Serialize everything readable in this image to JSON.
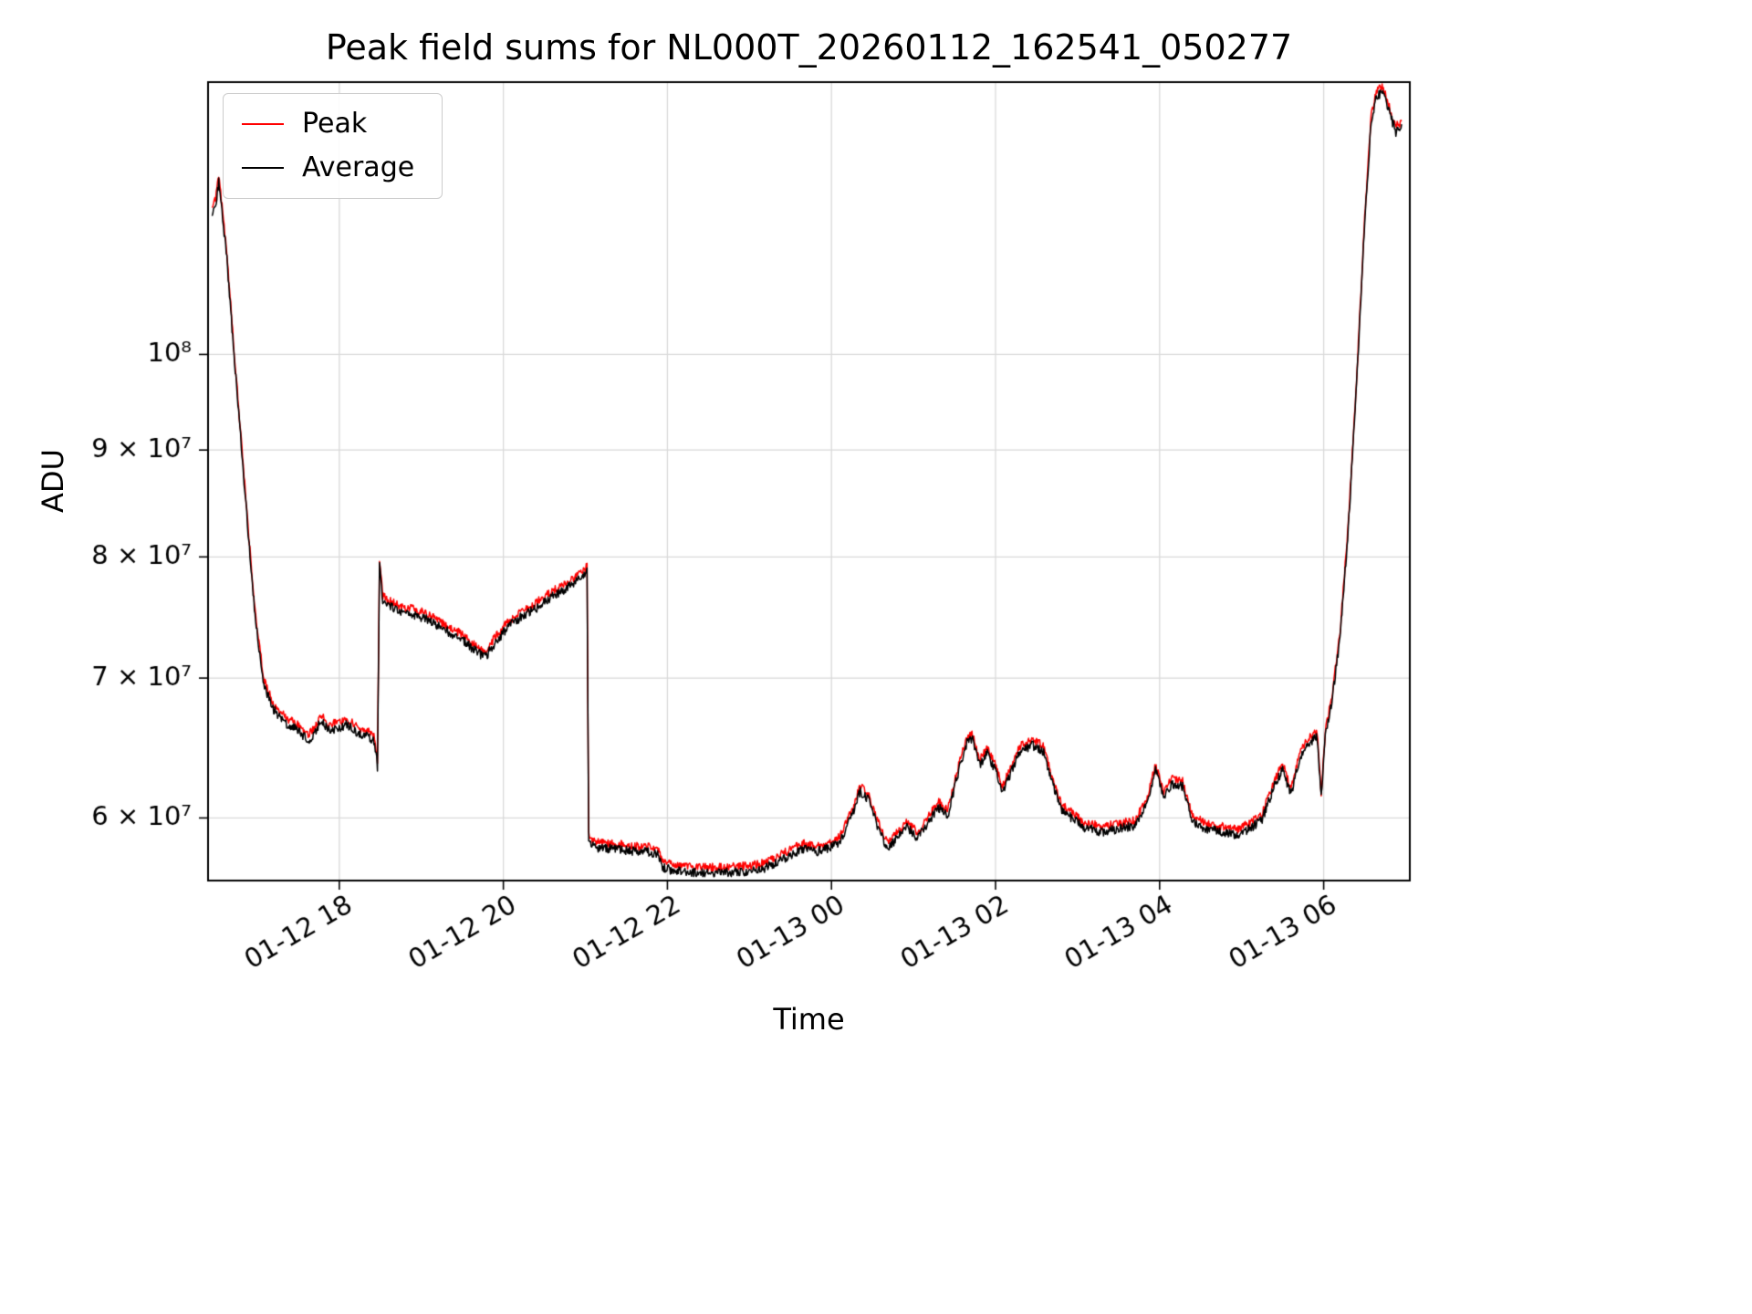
{
  "figure": {
    "background": "#ffffff"
  },
  "chart_data": {
    "type": "line",
    "title": "Peak field sums for NL000T_20260112_162541_050277",
    "xlabel": "Time",
    "ylabel": "ADU",
    "y_scale": "log",
    "grid": true,
    "legend_position": "upper left",
    "x_units": "hours since 01-12 00:00",
    "x_range": [
      16.4,
      31.05
    ],
    "y_range": [
      56000000,
      135000000
    ],
    "x_ticks": {
      "values": [
        18,
        20,
        22,
        24,
        26,
        28,
        30
      ],
      "labels": [
        "01-12 18",
        "01-12 20",
        "01-12 22",
        "01-13 00",
        "01-13 02",
        "01-13 04",
        "01-13 06"
      ]
    },
    "y_ticks": {
      "values": [
        60000000,
        70000000,
        80000000,
        90000000,
        100000000
      ],
      "labels": [
        "6 × 10⁷",
        "7 × 10⁷",
        "8 × 10⁷",
        "9 × 10⁷",
        "10⁸"
      ]
    },
    "axis_color": "#000000",
    "grid_color": "#d9d9d9",
    "noise_seed": 20260112,
    "anchors": {
      "value_unit": 10000000,
      "x": [
        16.45,
        16.5,
        16.53,
        16.57,
        16.63,
        16.7,
        16.78,
        16.88,
        16.98,
        17.08,
        17.2,
        17.35,
        17.5,
        17.62,
        17.7,
        17.78,
        17.88,
        18.0,
        18.1,
        18.22,
        18.35,
        18.43,
        18.465,
        18.49,
        18.53,
        18.6,
        18.75,
        18.95,
        19.1,
        19.3,
        19.5,
        19.65,
        19.78,
        19.9,
        20.05,
        20.2,
        20.4,
        20.6,
        20.75,
        20.88,
        21.0,
        21.02,
        21.04,
        21.1,
        21.3,
        21.5,
        21.7,
        21.88,
        21.94,
        22.1,
        22.4,
        22.7,
        23.0,
        23.2,
        23.35,
        23.5,
        23.65,
        23.8,
        23.95,
        24.1,
        24.25,
        24.35,
        24.45,
        24.55,
        24.68,
        24.8,
        24.92,
        25.05,
        25.18,
        25.3,
        25.42,
        25.55,
        25.65,
        25.72,
        25.8,
        25.9,
        26.0,
        26.08,
        26.18,
        26.3,
        26.45,
        26.58,
        26.68,
        26.8,
        26.95,
        27.1,
        27.3,
        27.5,
        27.7,
        27.85,
        27.95,
        28.05,
        28.15,
        28.28,
        28.4,
        28.55,
        28.75,
        28.95,
        29.1,
        29.25,
        29.4,
        29.5,
        29.6,
        29.72,
        29.85,
        29.92,
        29.97,
        30.02,
        30.1,
        30.2,
        30.3,
        30.4,
        30.5,
        30.58,
        30.65,
        30.72,
        30.8,
        30.88,
        30.95
      ],
      "v": [
        11.65,
        11.85,
        12.1,
        11.7,
        11.1,
        10.2,
        9.3,
        8.3,
        7.45,
        6.95,
        6.76,
        6.66,
        6.61,
        6.53,
        6.59,
        6.68,
        6.61,
        6.63,
        6.65,
        6.59,
        6.56,
        6.52,
        6.35,
        7.92,
        7.62,
        7.58,
        7.53,
        7.5,
        7.46,
        7.38,
        7.3,
        7.22,
        7.16,
        7.28,
        7.4,
        7.48,
        7.56,
        7.66,
        7.72,
        7.78,
        7.85,
        7.9,
        5.85,
        5.81,
        5.8,
        5.79,
        5.78,
        5.77,
        5.68,
        5.66,
        5.65,
        5.65,
        5.66,
        5.68,
        5.72,
        5.76,
        5.8,
        5.78,
        5.8,
        5.84,
        6.02,
        6.18,
        6.12,
        5.96,
        5.8,
        5.87,
        5.94,
        5.87,
        5.97,
        6.07,
        6.02,
        6.32,
        6.52,
        6.54,
        6.36,
        6.44,
        6.32,
        6.17,
        6.3,
        6.46,
        6.5,
        6.46,
        6.26,
        6.06,
        5.99,
        5.93,
        5.91,
        5.93,
        5.95,
        6.1,
        6.32,
        6.13,
        6.23,
        6.21,
        5.98,
        5.93,
        5.91,
        5.89,
        5.93,
        5.99,
        6.22,
        6.33,
        6.16,
        6.43,
        6.53,
        6.56,
        6.13,
        6.56,
        6.82,
        7.32,
        8.25,
        9.65,
        11.55,
        12.95,
        13.3,
        13.35,
        13.05,
        12.78,
        12.85
      ]
    },
    "series": [
      {
        "name": "Peak",
        "color": "#ff0000",
        "offset": 1.006,
        "noise": 0.0045
      },
      {
        "name": "Average",
        "color": "#000000",
        "offset": 1.0,
        "noise": 0.005
      }
    ]
  }
}
